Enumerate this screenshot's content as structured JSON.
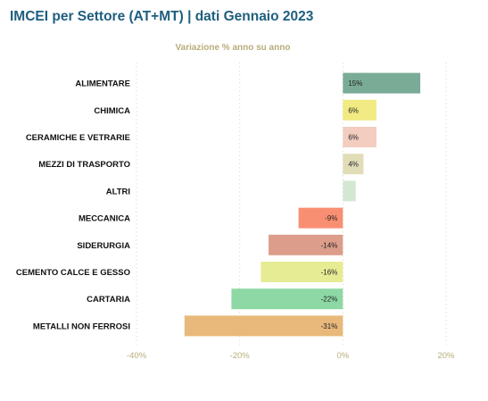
{
  "chart_data": {
    "type": "bar",
    "orientation": "horizontal",
    "title": "IMCEI per Settore (AT+MT) | dati Gennaio 2023",
    "subtitle": "Variazione % anno su anno",
    "categories": [
      "ALIMENTARE",
      "CHIMICA",
      "CERAMICHE E VETRARIE",
      "MEZZI DI TRASPORTO",
      "ALTRI",
      "MECCANICA",
      "SIDERURGIA",
      "CEMENTO CALCE E GESSO",
      "CARTARIA",
      "METALLI NON FERROSI"
    ],
    "values": [
      15,
      6.5,
      6.5,
      4,
      2.5,
      -8.6,
      -14.4,
      -15.9,
      -21.6,
      -30.7
    ],
    "data_labels": [
      "15%",
      "6%",
      "6%",
      "4%",
      "",
      "-9%",
      "-14%",
      "-16%",
      "-22%",
      "-31%"
    ],
    "colors": [
      "#7aab97",
      "#f2ea82",
      "#f2cdc0",
      "#e2ddb9",
      "#d3e8d3",
      "#f98f72",
      "#dc9d8a",
      "#e6ec93",
      "#8dd8a4",
      "#e8b97b"
    ],
    "xlim": [
      -40,
      20
    ],
    "xticks": [
      -40,
      -20,
      0,
      20
    ],
    "xtick_labels": [
      "-40%",
      "-20%",
      "0%",
      "20%"
    ],
    "grid": true
  }
}
